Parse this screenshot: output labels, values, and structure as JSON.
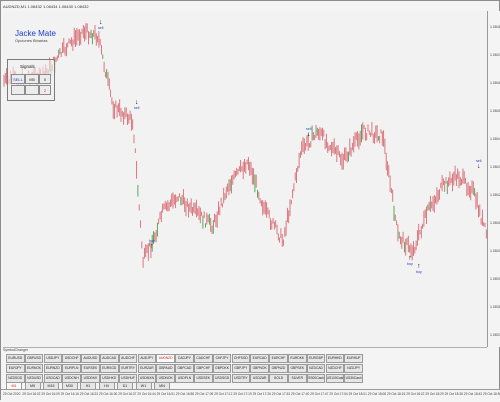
{
  "window": {
    "title": "AUDNZD,M1  1.08432 1.08434 1.08430 1.08432"
  },
  "brand": {
    "name": "Jacke Mate",
    "subtitle": "Opciones Binarias"
  },
  "signal_panel": {
    "title": "Signals",
    "values": [
      "SELL",
      "M5",
      "0",
      "2"
    ]
  },
  "chart": {
    "candle_color": "#d66b73",
    "candle_highlight": "#4aa04a",
    "price_labels": [
      "1.08480",
      "1.08470",
      "1.08460",
      "1.08450",
      "1.08440",
      "1.08430",
      "1.08420",
      "1.08410",
      "1.08400",
      "1.08390",
      "1.08380",
      "1.08370"
    ],
    "time_labels": [
      "29 Oct 2020",
      "29 Oct 16:02",
      "29 Oct 16:09",
      "29 Oct 16:16",
      "29 Oct 16:23",
      "29 Oct 16:30",
      "29 Oct 16:37",
      "29 Oct 16:44",
      "29 Oct 16:51",
      "29 Oct 16:58",
      "29 Oct 17:05",
      "29 Oct 17:12",
      "29 Oct 17:19",
      "29 Oct 17:26",
      "29 Oct 17:33",
      "29 Oct 17:40",
      "29 Oct 17:47",
      "29 Oct 17:54",
      "29 Oct 18:01",
      "29 Oct 18:08",
      "29 Oct 18:15",
      "29 Oct 18:22",
      "29 Oct 18:29",
      "29 Oct 18:36",
      "29 Oct 18:43",
      "29 Oct 18:50"
    ],
    "signals": [
      {
        "dir": "down",
        "label": "sell"
      },
      {
        "dir": "up",
        "label": "buy"
      },
      {
        "dir": "down",
        "label": "sell"
      },
      {
        "dir": "up",
        "label": "buy"
      },
      {
        "dir": "up",
        "label": "buy"
      },
      {
        "dir": "down",
        "label": "sell"
      },
      {
        "dir": "down",
        "label": "sell"
      }
    ]
  },
  "symbol_panel": {
    "label": "SymbolChanger",
    "active_symbol": "AUDNZD",
    "symbols": [
      [
        "EURUSD",
        "GBPUSD",
        "USDJPY",
        "USDCHF",
        "AUDUSD",
        "AUDCAD",
        "AUDCHF",
        "AUDJPY",
        "AUDNZD",
        "CADJPY",
        "CADCHF",
        "CHFJPY",
        "CHFSGD",
        "EURCAD",
        "EURCHF",
        "EURDKK",
        "EURGBP",
        "EURHKD",
        "EURHUF"
      ],
      [
        "EURJPY",
        "EURNOK",
        "EURNZD",
        "EURPLN",
        "EURSEK",
        "EURSGD",
        "EURTRY",
        "EURZAR",
        "GBPAUD",
        "GBPCAD",
        "GBPCHF",
        "GBPDKK",
        "GBPJPY",
        "GBPNOK",
        "GBPNZD",
        "GBPSEK",
        "NZDCAD",
        "NZDCHF",
        "NZDJPY"
      ],
      [
        "NZDSGD",
        "NZDUSD",
        "USDCAD",
        "USDCNH",
        "USDDKK",
        "USDHKD",
        "USDHUF",
        "USDMXN",
        "USDNOK",
        "USDPLN",
        "USDSEK",
        "USDSGD",
        "USDTRY",
        "USDZAR",
        "GOLD",
        "SILVER",
        "SS00Cash",
        "US100Cash",
        "US30Cash"
      ]
    ],
    "timeframes": [
      "M1",
      "M5",
      "M15",
      "M30",
      "H1",
      "H4",
      "D1",
      "W1",
      "MN"
    ],
    "active_timeframe": "M1"
  }
}
